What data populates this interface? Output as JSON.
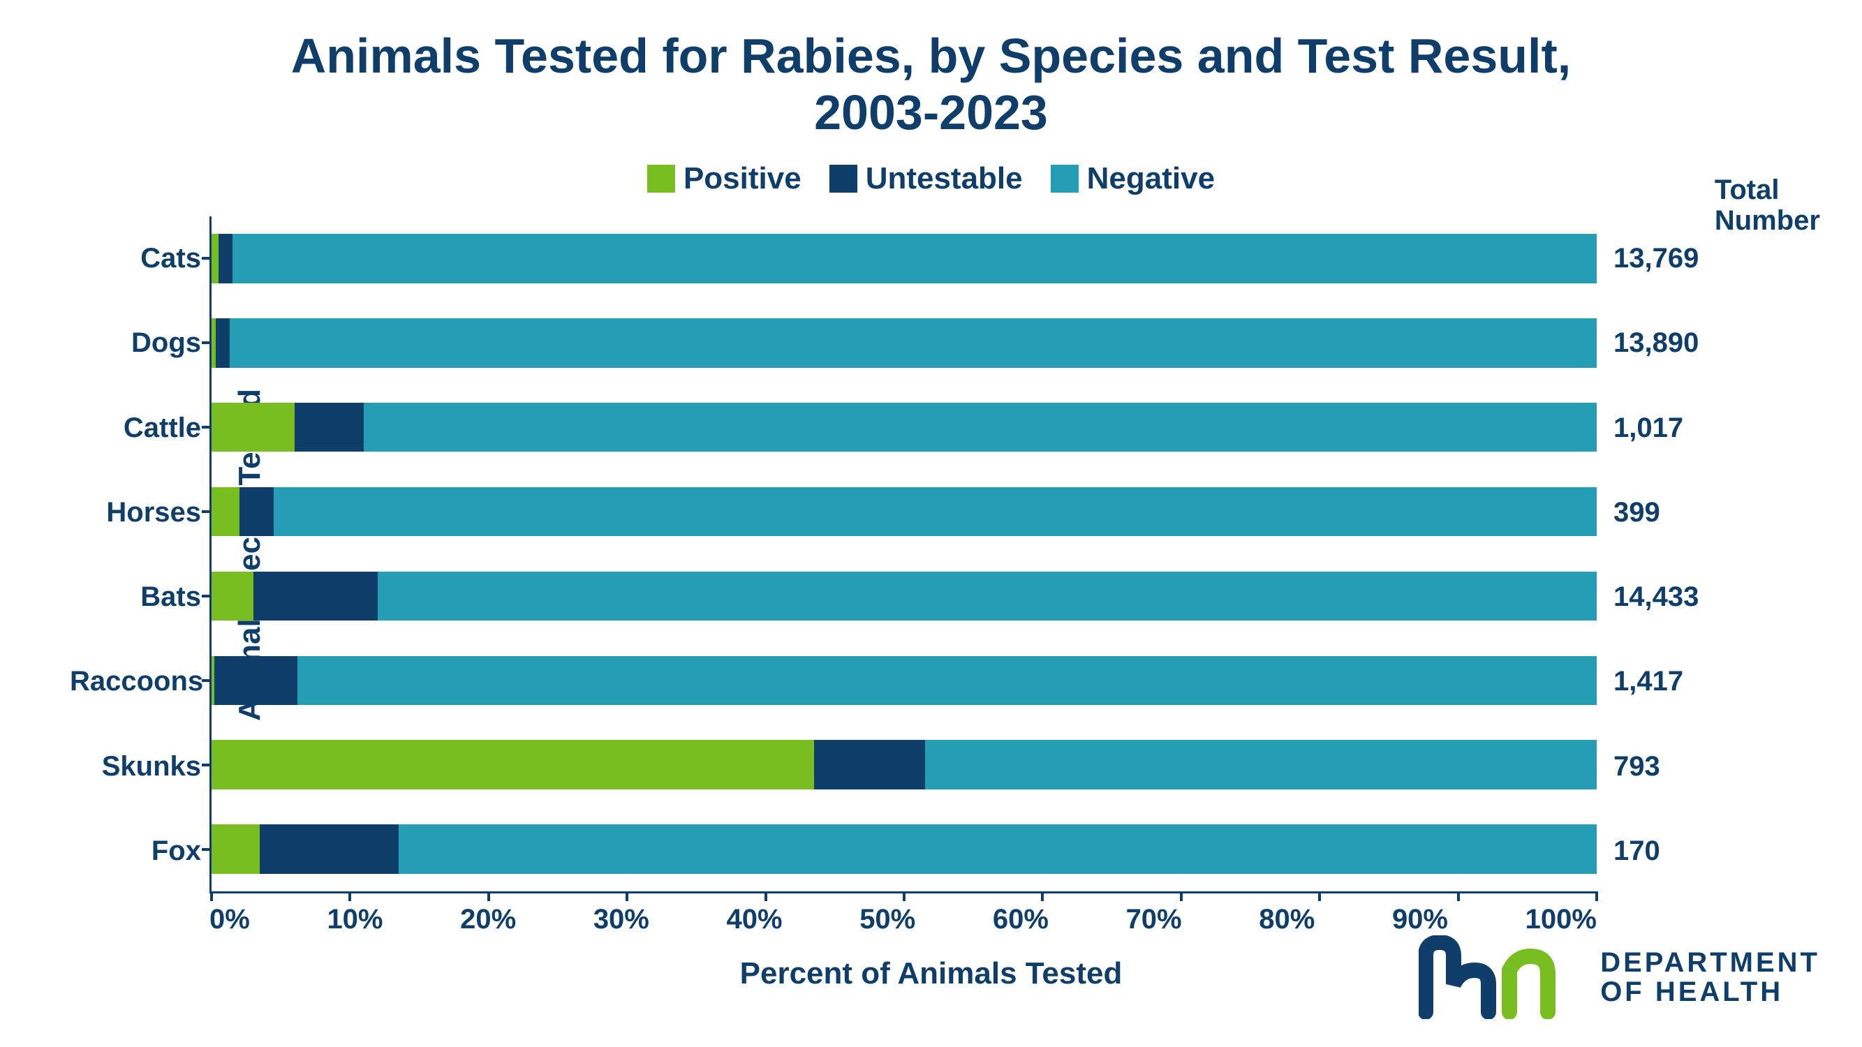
{
  "title_line1": "Animals Tested for Rabies, by Species and Test Result,",
  "title_line2": "2003-2023",
  "chart": {
    "type": "stacked-bar-horizontal",
    "y_axis_label": "Animal Species Tested",
    "x_axis_label": "Percent of Animals Tested",
    "totals_header_line1": "Total",
    "totals_header_line2": "Number",
    "x_ticks": [
      "0%",
      "10%",
      "20%",
      "30%",
      "40%",
      "50%",
      "60%",
      "70%",
      "80%",
      "90%",
      "100%"
    ],
    "xlim": [
      0,
      100
    ],
    "legend": [
      {
        "label": "Positive",
        "color": "#78be20"
      },
      {
        "label": "Untestable",
        "color": "#103e6b"
      },
      {
        "label": "Negative",
        "color": "#259db5"
      }
    ],
    "series": [
      {
        "label": "Cats",
        "positive": 0.5,
        "untestable": 1.0,
        "negative": 98.5,
        "total": "13,769"
      },
      {
        "label": "Dogs",
        "positive": 0.3,
        "untestable": 1.0,
        "negative": 98.7,
        "total": "13,890"
      },
      {
        "label": "Cattle",
        "positive": 6.0,
        "untestable": 5.0,
        "negative": 89.0,
        "total": "1,017"
      },
      {
        "label": "Horses",
        "positive": 2.0,
        "untestable": 2.5,
        "negative": 95.5,
        "total": "399"
      },
      {
        "label": "Bats",
        "positive": 3.0,
        "untestable": 9.0,
        "negative": 88.0,
        "total": "14,433"
      },
      {
        "label": "Raccoons",
        "positive": 0.2,
        "untestable": 6.0,
        "negative": 93.8,
        "total": "1,417"
      },
      {
        "label": "Skunks",
        "positive": 43.5,
        "untestable": 8.0,
        "negative": 48.5,
        "total": "793"
      },
      {
        "label": "Fox",
        "positive": 3.5,
        "untestable": 10.0,
        "negative": 86.5,
        "total": "170"
      }
    ],
    "colors": {
      "positive": "#78be20",
      "untestable": "#103e6b",
      "negative": "#259db5",
      "text": "#103e6b",
      "background": "#ffffff"
    },
    "title_fontsize": 70,
    "label_fontsize": 44,
    "tick_fontsize": 40,
    "bar_gap_ratio": 0.3
  },
  "branding": {
    "org_line1": "DEPARTMENT",
    "org_line2": "OF HEALTH",
    "logo_colors": {
      "m": "#103e6b",
      "n": "#78be20"
    }
  }
}
